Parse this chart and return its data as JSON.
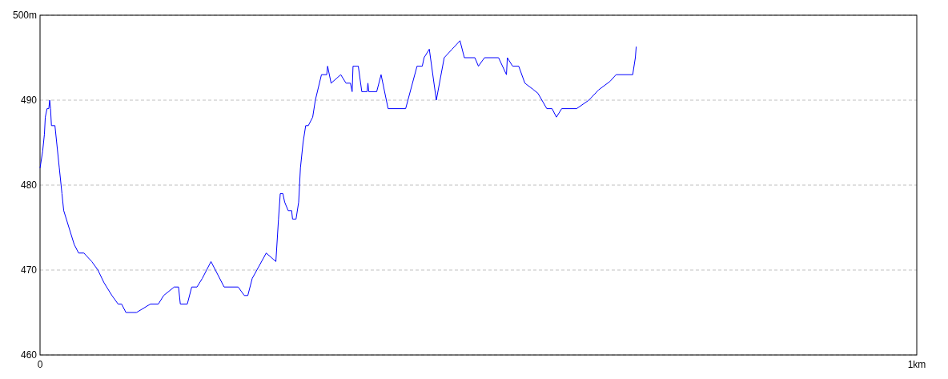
{
  "chart_data": {
    "type": "line",
    "x": [
      0,
      0.003,
      0.005,
      0.006,
      0.008,
      0.01,
      0.011,
      0.012,
      0.013,
      0.017,
      0.019,
      0.022,
      0.025,
      0.027,
      0.033,
      0.039,
      0.044,
      0.05,
      0.059,
      0.066,
      0.073,
      0.082,
      0.089,
      0.093,
      0.098,
      0.11,
      0.126,
      0.135,
      0.141,
      0.153,
      0.158,
      0.16,
      0.168,
      0.173,
      0.179,
      0.185,
      0.195,
      0.21,
      0.226,
      0.233,
      0.237,
      0.242,
      0.258,
      0.269,
      0.272,
      0.274,
      0.277,
      0.279,
      0.283,
      0.287,
      0.288,
      0.292,
      0.295,
      0.297,
      0.3,
      0.303,
      0.306,
      0.311,
      0.314,
      0.321,
      0.327,
      0.328,
      0.332,
      0.343,
      0.349,
      0.354,
      0.356,
      0.357,
      0.363,
      0.367,
      0.373,
      0.374,
      0.375,
      0.384,
      0.389,
      0.397,
      0.417,
      0.43,
      0.436,
      0.438,
      0.444,
      0.452,
      0.461,
      0.47,
      0.479,
      0.484,
      0.496,
      0.5,
      0.507,
      0.523,
      0.532,
      0.533,
      0.539,
      0.546,
      0.553,
      0.562,
      0.568,
      0.578,
      0.584,
      0.589,
      0.595,
      0.612,
      0.626,
      0.637,
      0.65,
      0.657,
      0.676,
      0.679,
      0.68
    ],
    "series": [
      {
        "color": "#0000ff",
        "values": [
          482,
          484,
          486,
          488,
          489,
          489,
          490,
          489,
          487,
          487,
          485,
          482,
          479,
          477,
          475,
          473,
          472,
          472,
          471,
          470,
          468.5,
          467,
          466,
          466,
          465,
          465,
          466,
          466,
          467,
          468,
          468,
          466,
          466,
          468,
          468,
          469,
          471,
          468,
          468,
          467,
          467,
          469,
          472,
          471,
          476,
          479,
          479,
          478,
          477,
          477,
          476,
          476,
          478,
          482,
          485,
          487,
          487,
          488,
          490,
          493,
          493,
          494,
          492,
          493,
          492,
          492,
          491,
          494,
          494,
          491,
          491,
          492,
          491,
          491,
          493,
          489,
          489,
          494,
          494,
          495,
          496,
          490,
          495,
          496,
          497,
          495,
          495,
          494,
          495,
          495,
          493,
          495,
          494,
          494,
          492,
          491.3,
          490.8,
          489,
          489,
          488,
          489,
          489,
          490,
          491.2,
          492.2,
          493,
          493,
          495,
          496.3
        ]
      }
    ],
    "xlim": [
      0,
      1
    ],
    "xticks": [
      0,
      {
        "value": 1,
        "label": "1km"
      }
    ],
    "ylim": [
      460,
      500
    ],
    "yticks": [
      460,
      470,
      480,
      490,
      {
        "value": 500,
        "label": "500m"
      }
    ],
    "grid": "y",
    "line_style": "solid",
    "marker": "none"
  }
}
